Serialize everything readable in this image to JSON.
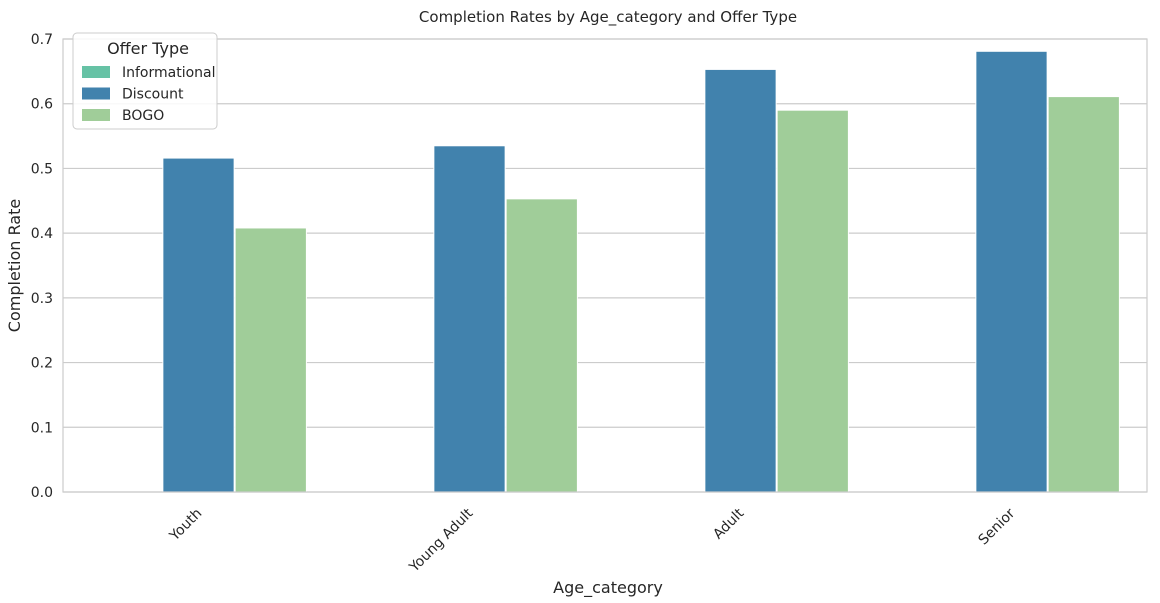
{
  "chart_data": {
    "type": "bar",
    "title": "Completion Rates by Age_category and Offer Type",
    "xlabel": "Age_category",
    "ylabel": "Completion Rate",
    "categories": [
      "Youth",
      "Young Adult",
      "Adult",
      "Senior"
    ],
    "ylim": [
      0,
      0.7
    ],
    "yticks": [
      "0.0",
      "0.1",
      "0.2",
      "0.3",
      "0.4",
      "0.5",
      "0.6",
      "0.7"
    ],
    "grid": true,
    "legend": {
      "title": "Offer Type",
      "placement": "top-left"
    },
    "series": [
      {
        "name": "Informational",
        "color": "#66c2a5",
        "values": [
          0,
          0,
          0,
          0
        ]
      },
      {
        "name": "Discount",
        "color": "#4182ad",
        "values": [
          0.516,
          0.535,
          0.653,
          0.681
        ]
      },
      {
        "name": "BOGO",
        "color": "#a0cd99",
        "values": [
          0.408,
          0.453,
          0.59,
          0.611
        ]
      }
    ]
  }
}
